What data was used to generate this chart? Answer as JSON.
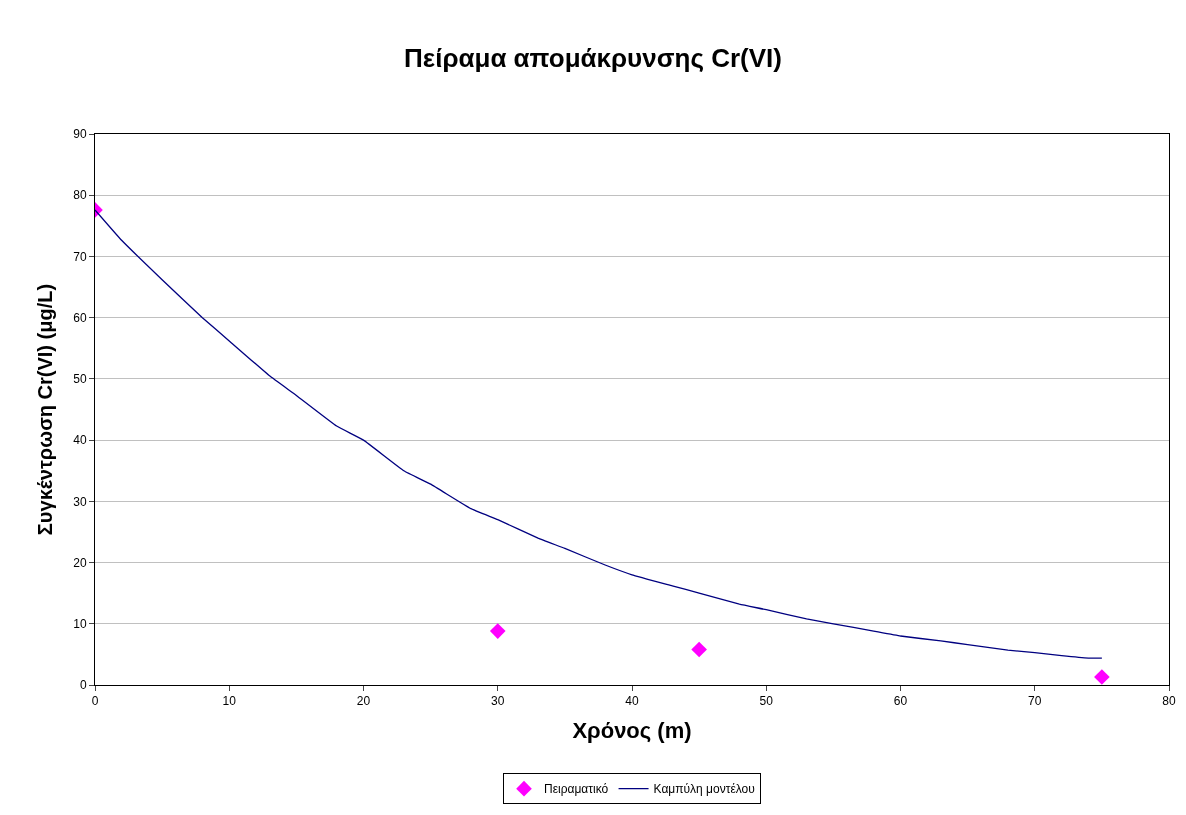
{
  "chart_data": {
    "type": "scatter",
    "title": "Πείραμα απομάκρυνσης Cr(VI)",
    "xlabel": "Χρόνος (m)",
    "ylabel": "Συγκέντρωση Cr(VI) (μg/L)",
    "series": [
      {
        "name": "Πειραματικό",
        "color": "#ff00ff",
        "marker": "diamond",
        "x": [
          0,
          30,
          45,
          75
        ],
        "values": [
          77.6,
          8.8,
          5.8,
          1.3
        ]
      },
      {
        "name": "Καμπύλη μοντέλου",
        "type": "line",
        "color": "#000080",
        "marker": "none",
        "x": [
          0,
          2,
          5,
          8,
          10,
          13,
          15,
          18,
          20,
          23,
          25,
          28,
          30,
          33,
          35,
          38,
          40,
          43,
          45,
          48,
          50,
          53,
          55,
          58,
          60,
          63,
          65,
          68,
          70,
          72,
          74,
          75
        ],
        "values": [
          77.6,
          72.6,
          66.2,
          60.0,
          56.2,
          50.5,
          47.3,
          42.3,
          40.0,
          35.0,
          32.8,
          28.8,
          27.0,
          24.0,
          22.3,
          19.6,
          18.0,
          16.2,
          15.0,
          13.2,
          12.3,
          10.8,
          10.0,
          8.8,
          8.0,
          7.2,
          6.6,
          5.7,
          5.3,
          4.8,
          4.4,
          4.4
        ]
      }
    ],
    "xlim": [
      0,
      80
    ],
    "xticks": [
      0,
      10,
      20,
      30,
      40,
      50,
      60,
      70,
      80
    ],
    "ylim": [
      0,
      90
    ],
    "yticks": [
      0,
      10,
      20,
      30,
      40,
      50,
      60,
      70,
      80,
      90
    ],
    "grid": "y",
    "legend": "bottom"
  }
}
